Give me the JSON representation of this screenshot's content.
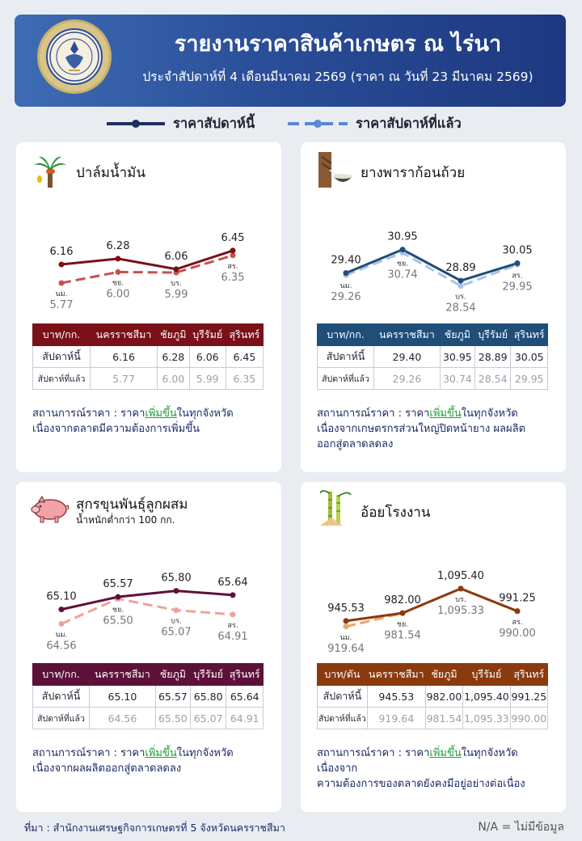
{
  "header": {
    "title": "รายงานราคาสินค้าเกษตร ณ ไร่นา",
    "subtitle": "ประจำสัปดาห์ที่ 4 เดือนมีนาคม 2569 (ราคา ณ วันที่ 23 มีนาคม 2569)",
    "logo_text": "สำนักงานเศรษฐกิจการเกษตร"
  },
  "legend": {
    "this_week": "ราคาสัปดาห์นี้",
    "last_week": "ราคาสัปดาห์ที่แล้ว"
  },
  "provinces_short": [
    "นม.",
    "ชย.",
    "บร.",
    "สร."
  ],
  "table_labels": {
    "this_week": "สัปดาห์นี้",
    "last_week": "สัปดาห์ที่แล้ว"
  },
  "status_prefix": "สถานการณ์ราคา : ",
  "cards": [
    {
      "title": "ปาล์มน้ำมัน",
      "unit": "บาท/กก.",
      "color": "#7a1018",
      "prev_color": "#c9504e",
      "provinces": [
        "นครราชสีมา",
        "ชัยภูมิ",
        "บุรีรัมย์",
        "สุรินทร์"
      ],
      "this_week": [
        "6.16",
        "6.28",
        "6.06",
        "6.45"
      ],
      "last_week": [
        "5.77",
        "6.00",
        "5.99",
        "6.35"
      ],
      "status_a": "ราคา",
      "status_up": "เพิ่มขึ้น",
      "status_b": "ในทุกจังหวัด",
      "status_c": "เนื่องจากตลาดมีความต้องการเพิ่มขึ้น",
      "status_d": ""
    },
    {
      "title": "ยางพาราก้อนถ้วย",
      "unit": "บาท/กก.",
      "color": "#1f4e79",
      "prev_color": "#a8c4e4",
      "provinces": [
        "นครราชสีมา",
        "ชัยภูมิ",
        "บุรีรัมย์",
        "สุรินทร์"
      ],
      "this_week": [
        "29.40",
        "30.95",
        "28.89",
        "30.05"
      ],
      "last_week": [
        "29.26",
        "30.74",
        "28.54",
        "29.95"
      ],
      "status_a": "ราคา",
      "status_up": "เพิ่มขึ้น",
      "status_b": "ในทุกจังหวัด",
      "status_c": "เนื่องจากเกษตรกรส่วนใหญ่ปิดหน้ายาง ผลผลิต",
      "status_d": "ออกสู่ตลาดลดลง"
    },
    {
      "title": "สุกรขุนพันธุ์ลูกผสม",
      "subtitle": "น้ำหนักต่ำกว่า 100 กก.",
      "unit": "บาท/กก.",
      "color": "#5e1138",
      "prev_color": "#f1a19c",
      "provinces": [
        "นครราชสีมา",
        "ชัยภูมิ",
        "บุรีรัมย์",
        "สุรินทร์"
      ],
      "this_week": [
        "65.10",
        "65.57",
        "65.80",
        "65.64"
      ],
      "last_week": [
        "64.56",
        "65.50",
        "65.07",
        "64.91"
      ],
      "status_a": "ราคา",
      "status_up": "เพิ่มขึ้น",
      "status_b": "ในทุกจังหวัด",
      "status_c": "เนื่องจากผลผลิตออกสู่ตลาดลดลง",
      "status_d": ""
    },
    {
      "title": "อ้อยโรงงาน",
      "unit": "บาท/ตัน",
      "color": "#8b3a0e",
      "prev_color": "#e7a870",
      "provinces": [
        "นครราชสีมา",
        "ชัยภูมิ",
        "บุรีรัมย์",
        "สุรินทร์"
      ],
      "this_week": [
        "945.53",
        "982.00",
        "1,095.40",
        "991.25"
      ],
      "last_week": [
        "919.64",
        "981.54",
        "1,095.33",
        "990.00"
      ],
      "status_a": "ราคา",
      "status_up": "เพิ่มขึ้น",
      "status_b": "ในทุกจังหวัด เนื่องจาก",
      "status_c": "ความต้องการของตลาดยังคงมีอยู่อย่างต่อเนื่อง",
      "status_d": ""
    }
  ],
  "chart_data": [
    {
      "type": "line",
      "x": [
        "นม.",
        "ชย.",
        "บร.",
        "สร."
      ],
      "series": [
        {
          "name": "ราคาสัปดาห์นี้",
          "values": [
            6.16,
            6.28,
            6.06,
            6.45
          ]
        },
        {
          "name": "ราคาสัปดาห์ที่แล้ว",
          "values": [
            5.77,
            6.0,
            5.99,
            6.35
          ]
        }
      ],
      "title": "ปาล์มน้ำมัน",
      "ylim": [
        5.6,
        6.55
      ]
    },
    {
      "type": "line",
      "x": [
        "นม.",
        "ชย.",
        "บร.",
        "สร."
      ],
      "series": [
        {
          "name": "ราคาสัปดาห์นี้",
          "values": [
            29.4,
            30.95,
            28.89,
            30.05
          ]
        },
        {
          "name": "ราคาสัปดาห์ที่แล้ว",
          "values": [
            29.26,
            30.74,
            28.54,
            29.95
          ]
        }
      ],
      "title": "ยางพาราก้อนถ้วย",
      "ylim": [
        28.2,
        31.2
      ]
    },
    {
      "type": "line",
      "x": [
        "นม.",
        "ชย.",
        "บร.",
        "สร."
      ],
      "series": [
        {
          "name": "ราคาสัปดาห์นี้",
          "values": [
            65.1,
            65.57,
            65.8,
            65.64
          ]
        },
        {
          "name": "ราคาสัปดาห์ที่แล้ว",
          "values": [
            64.56,
            65.5,
            65.07,
            64.91
          ]
        }
      ],
      "title": "สุกรขุนพันธุ์ลูกผสม",
      "ylim": [
        64.3,
        66.0
      ]
    },
    {
      "type": "line",
      "x": [
        "นม.",
        "ชย.",
        "บร.",
        "สร."
      ],
      "series": [
        {
          "name": "ราคาสัปดาห์นี้",
          "values": [
            945.53,
            982.0,
            1095.4,
            991.25
          ]
        },
        {
          "name": "ราคาสัปดาห์ที่แล้ว",
          "values": [
            919.64,
            981.54,
            1095.33,
            990.0
          ]
        }
      ],
      "title": "อ้อยโรงงาน",
      "ylim": [
        900,
        1110
      ]
    }
  ],
  "footer": {
    "source": "ที่มา : สำนักงานเศรษฐกิจการเกษตรที่ 5 จังหวัดนครราชสีมา",
    "na": "N/A = ไม่มีข้อมูล"
  }
}
